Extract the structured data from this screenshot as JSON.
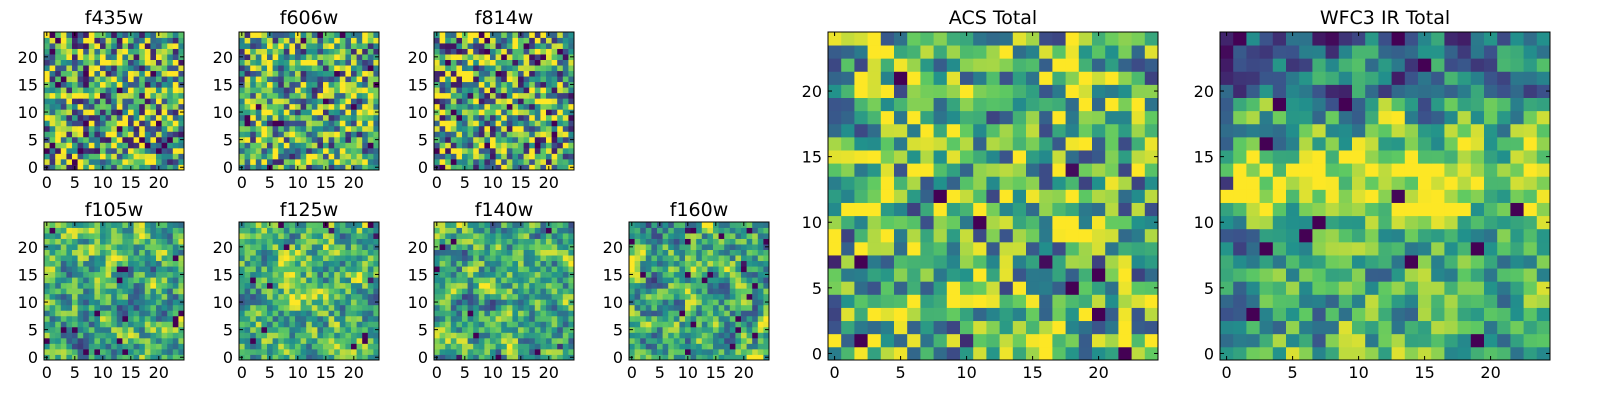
{
  "chart_data": [
    {
      "type": "heatmap",
      "title": "f435w",
      "size": 25,
      "xticks": [
        0,
        5,
        10,
        15,
        20
      ],
      "yticks": [
        0,
        5,
        10,
        15,
        20
      ],
      "xlim": [
        -0.5,
        24.5
      ],
      "ylim": [
        -0.5,
        24.5
      ],
      "vrange": [
        0,
        1
      ],
      "seed": 11,
      "smooth": 0,
      "mean": 0.6,
      "spread": 0.55
    },
    {
      "type": "heatmap",
      "title": "f606w",
      "size": 25,
      "xticks": [
        0,
        5,
        10,
        15,
        20
      ],
      "yticks": [
        0,
        5,
        10,
        15,
        20
      ],
      "xlim": [
        -0.5,
        24.5
      ],
      "ylim": [
        -0.5,
        24.5
      ],
      "vrange": [
        0,
        1
      ],
      "seed": 23,
      "smooth": 0,
      "mean": 0.62,
      "spread": 0.5
    },
    {
      "type": "heatmap",
      "title": "f814w",
      "size": 25,
      "xticks": [
        0,
        5,
        10,
        15,
        20
      ],
      "yticks": [
        0,
        5,
        10,
        15,
        20
      ],
      "xlim": [
        -0.5,
        24.5
      ],
      "ylim": [
        -0.5,
        24.5
      ],
      "vrange": [
        0,
        1
      ],
      "seed": 37,
      "smooth": 0,
      "mean": 0.6,
      "spread": 0.55
    },
    {
      "type": "heatmap",
      "title": "f105w",
      "size": 25,
      "xticks": [
        0,
        5,
        10,
        15,
        20
      ],
      "yticks": [
        0,
        5,
        10,
        15,
        20
      ],
      "xlim": [
        -0.5,
        24.5
      ],
      "ylim": [
        -0.5,
        24.5
      ],
      "vrange": [
        0,
        1
      ],
      "seed": 41,
      "smooth": 1,
      "mean": 0.62,
      "spread": 0.6
    },
    {
      "type": "heatmap",
      "title": "f125w",
      "size": 25,
      "xticks": [
        0,
        5,
        10,
        15,
        20
      ],
      "yticks": [
        0,
        5,
        10,
        15,
        20
      ],
      "xlim": [
        -0.5,
        24.5
      ],
      "ylim": [
        -0.5,
        24.5
      ],
      "vrange": [
        0,
        1
      ],
      "seed": 53,
      "smooth": 1,
      "mean": 0.66,
      "spread": 0.6
    },
    {
      "type": "heatmap",
      "title": "f140w",
      "size": 25,
      "xticks": [
        0,
        5,
        10,
        15,
        20
      ],
      "yticks": [
        0,
        5,
        10,
        15,
        20
      ],
      "xlim": [
        -0.5,
        24.5
      ],
      "ylim": [
        -0.5,
        24.5
      ],
      "vrange": [
        0,
        1
      ],
      "seed": 67,
      "smooth": 1,
      "mean": 0.62,
      "spread": 0.6
    },
    {
      "type": "heatmap",
      "title": "f160w",
      "size": 25,
      "xticks": [
        0,
        5,
        10,
        15,
        20
      ],
      "yticks": [
        0,
        5,
        10,
        15,
        20
      ],
      "xlim": [
        -0.5,
        24.5
      ],
      "ylim": [
        -0.5,
        24.5
      ],
      "vrange": [
        0,
        1
      ],
      "seed": 79,
      "smooth": 1,
      "mean": 0.6,
      "spread": 0.62
    },
    {
      "type": "heatmap",
      "title": "ACS Total",
      "size": 25,
      "xticks": [
        0,
        5,
        10,
        15,
        20
      ],
      "yticks": [
        0,
        5,
        10,
        15,
        20
      ],
      "xlim": [
        -0.5,
        24.5
      ],
      "ylim": [
        -0.5,
        24.5
      ],
      "vrange": [
        0,
        1
      ],
      "seed": 97,
      "smooth": 0,
      "mean": 0.65,
      "spread": 0.45
    },
    {
      "type": "heatmap",
      "title": "WFC3 IR Total",
      "size": 25,
      "xticks": [
        0,
        5,
        10,
        15,
        20
      ],
      "yticks": [
        0,
        5,
        10,
        15,
        20
      ],
      "xlim": [
        -0.5,
        24.5
      ],
      "ylim": [
        -0.5,
        24.5
      ],
      "vrange": [
        0,
        1
      ],
      "seed": 113,
      "smooth": 1,
      "mean": 0.58,
      "spread": 0.6,
      "band": true
    }
  ],
  "colormap": [
    "#440154",
    "#3b528b",
    "#21918c",
    "#5ec962",
    "#fde725"
  ]
}
